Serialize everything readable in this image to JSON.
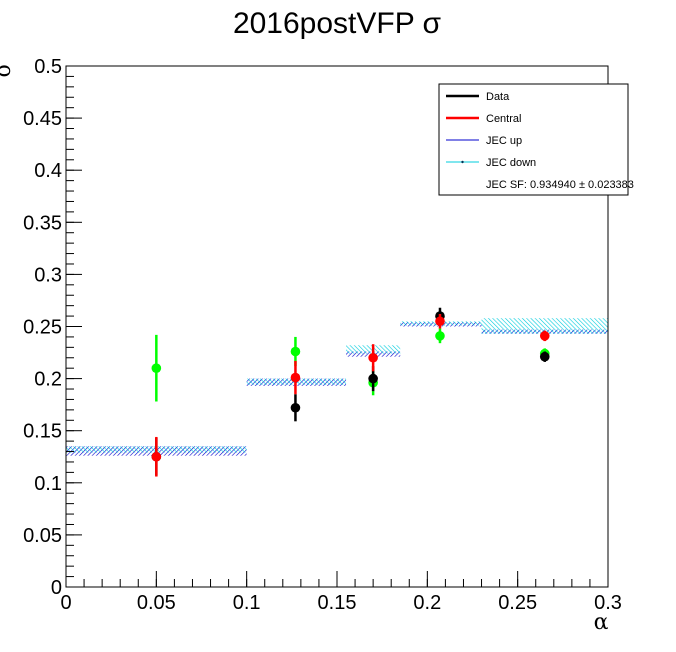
{
  "chart_data": {
    "type": "scatter",
    "title": "2016postVFP σ",
    "xlabel": "α",
    "ylabel": "σ",
    "xlim": [
      0,
      0.3
    ],
    "ylim": [
      0,
      0.5
    ],
    "x_ticks": [
      0,
      0.05,
      0.1,
      0.15,
      0.2,
      0.25,
      0.3
    ],
    "x_tick_labels": [
      "0",
      "0.05",
      "0.1",
      "0.15",
      "0.2",
      "0.25",
      "0.3"
    ],
    "y_ticks": [
      0,
      0.05,
      0.1,
      0.15,
      0.2,
      0.25,
      0.3,
      0.35,
      0.4,
      0.45,
      0.5
    ],
    "y_tick_labels": [
      "0",
      "0.05",
      "0.1",
      "0.15",
      "0.2",
      "0.25",
      "0.3",
      "0.35",
      "0.4",
      "0.45",
      "0.5"
    ],
    "legend_position": "top-right",
    "series": [
      {
        "name": "Data",
        "color": "#000000",
        "points": [
          {
            "x": 0.05,
            "y": 0.125,
            "err": 0.018
          },
          {
            "x": 0.127,
            "y": 0.172,
            "err": 0.013
          },
          {
            "x": 0.17,
            "y": 0.2,
            "err": 0.012
          },
          {
            "x": 0.207,
            "y": 0.26,
            "err": 0.008
          },
          {
            "x": 0.265,
            "y": 0.221,
            "err": 0.005
          }
        ]
      },
      {
        "name": "Central",
        "color": "#ff0000",
        "points": [
          {
            "x": 0.05,
            "y": 0.125,
            "err": 0.019
          },
          {
            "x": 0.127,
            "y": 0.201,
            "err": 0.016
          },
          {
            "x": 0.17,
            "y": 0.22,
            "err": 0.013
          },
          {
            "x": 0.207,
            "y": 0.255,
            "err": 0.007
          },
          {
            "x": 0.265,
            "y": 0.241,
            "err": 0.005
          }
        ]
      },
      {
        "name": "",
        "color": "#00ff00",
        "points": [
          {
            "x": 0.05,
            "y": 0.21,
            "err": 0.032
          },
          {
            "x": 0.127,
            "y": 0.226,
            "err": 0.014
          },
          {
            "x": 0.17,
            "y": 0.196,
            "err": 0.012
          },
          {
            "x": 0.207,
            "y": 0.241,
            "err": 0.007
          },
          {
            "x": 0.265,
            "y": 0.224,
            "err": 0.005
          }
        ]
      }
    ],
    "bands": [
      {
        "name": "JEC up",
        "color": "#0000cc",
        "bins": [
          {
            "x0": 0.0,
            "x1": 0.1,
            "y0": 0.126,
            "y1": 0.135
          },
          {
            "x0": 0.1,
            "x1": 0.155,
            "y0": 0.193,
            "y1": 0.2
          },
          {
            "x0": 0.155,
            "x1": 0.185,
            "y0": 0.221,
            "y1": 0.226
          },
          {
            "x0": 0.185,
            "x1": 0.23,
            "y0": 0.25,
            "y1": 0.254
          },
          {
            "x0": 0.23,
            "x1": 0.3,
            "y0": 0.243,
            "y1": 0.247
          }
        ]
      },
      {
        "name": "JEC down",
        "color": "#00ccdd",
        "bins": [
          {
            "x0": 0.0,
            "x1": 0.1,
            "y0": 0.129,
            "y1": 0.135
          },
          {
            "x0": 0.1,
            "x1": 0.155,
            "y0": 0.194,
            "y1": 0.2
          },
          {
            "x0": 0.155,
            "x1": 0.185,
            "y0": 0.224,
            "y1": 0.232
          },
          {
            "x0": 0.185,
            "x1": 0.23,
            "y0": 0.251,
            "y1": 0.255
          },
          {
            "x0": 0.23,
            "x1": 0.3,
            "y0": 0.243,
            "y1": 0.258
          }
        ]
      }
    ],
    "legend_entries": [
      {
        "label": "Data",
        "color": "#000000",
        "style": "thick-line"
      },
      {
        "label": "Central",
        "color": "#ff0000",
        "style": "thick-line"
      },
      {
        "label": "JEC up",
        "color": "#0000cc",
        "style": "thin-line"
      },
      {
        "label": "JEC down",
        "color": "#00ccdd",
        "style": "dot-line"
      },
      {
        "label": "JEC SF: 0.934940 ± 0.023383",
        "color": "",
        "style": "none"
      }
    ]
  }
}
